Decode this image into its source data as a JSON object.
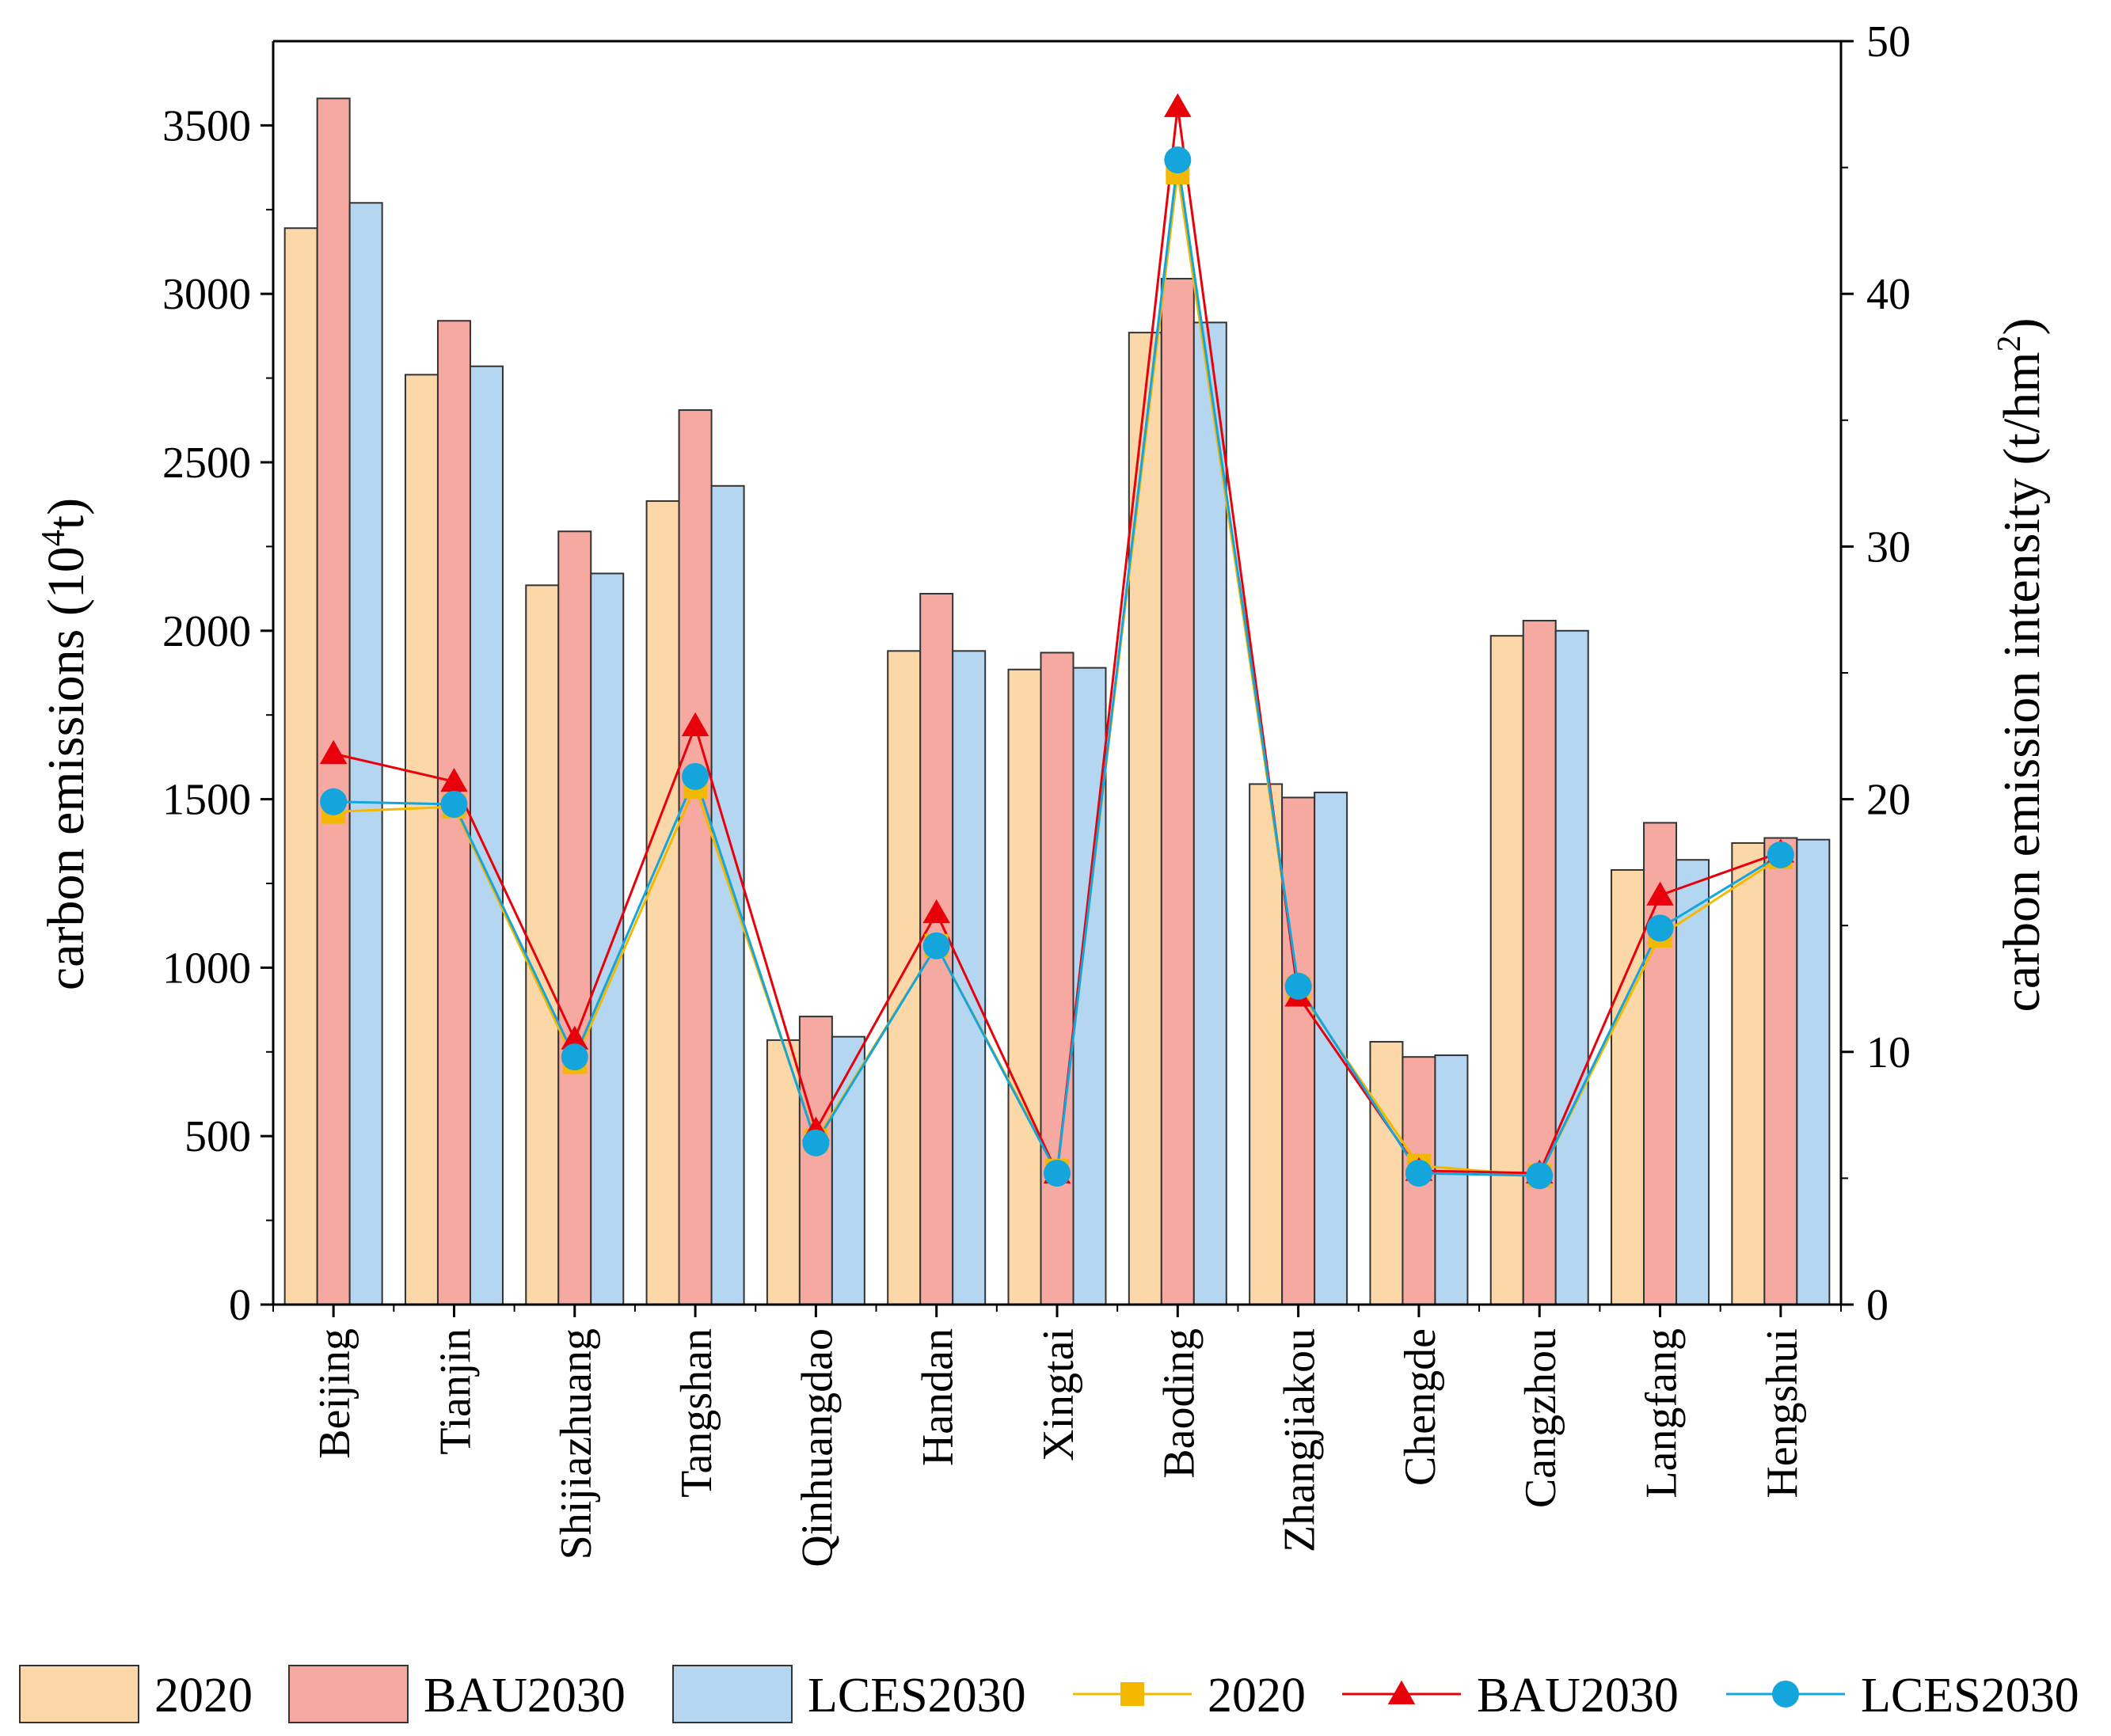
{
  "chart_data": {
    "type": "bar+line",
    "categories": [
      "Beijing",
      "Tianjin",
      "Shijiazhuang",
      "Tangshan",
      "Qinhuangdao",
      "Handan",
      "Xingtai",
      "Baoding",
      "Zhangjiakou",
      "Chengde",
      "Cangzhou",
      "Langfang",
      "Hengshui"
    ],
    "bar_series": [
      {
        "name": "2020",
        "color": "#FCD7A8",
        "values": [
          3195,
          2760,
          2135,
          2385,
          785,
          1940,
          1885,
          2885,
          1545,
          780,
          1985,
          1290,
          1370
        ]
      },
      {
        "name": "BAU2030",
        "color": "#F5A9A0",
        "values": [
          3580,
          2920,
          2295,
          2655,
          855,
          2110,
          1935,
          3045,
          1505,
          735,
          2030,
          1430,
          1385
        ]
      },
      {
        "name": "LCES2030",
        "color": "#B5D6F0",
        "values": [
          3270,
          2785,
          2170,
          2430,
          795,
          1940,
          1890,
          2915,
          1520,
          740,
          2000,
          1320,
          1380
        ]
      }
    ],
    "line_series": [
      {
        "name": "2020",
        "color": "#F5B800",
        "marker": "square",
        "values": [
          19.5,
          19.7,
          9.6,
          20.5,
          6.5,
          14.2,
          5.3,
          44.8,
          12.5,
          5.5,
          5.1,
          14.6,
          17.7
        ]
      },
      {
        "name": "BAU2030",
        "color": "#E8000B",
        "marker": "triangle",
        "values": [
          21.8,
          20.7,
          10.5,
          22.9,
          6.9,
          15.5,
          5.2,
          47.4,
          12.2,
          5.3,
          5.2,
          16.2,
          17.9
        ]
      },
      {
        "name": "LCES2030",
        "color": "#14A5DC",
        "marker": "circle",
        "values": [
          19.9,
          19.8,
          9.8,
          20.9,
          6.4,
          14.2,
          5.2,
          45.3,
          12.6,
          5.2,
          5.1,
          14.9,
          17.8
        ]
      }
    ],
    "left_axis": {
      "label_prefix": "carbon emissions (10",
      "label_sup": "4",
      "label_suffix": "t)",
      "ylim": [
        0,
        3750
      ],
      "ticks": [
        0,
        500,
        1000,
        1500,
        2000,
        2500,
        3000,
        3500
      ]
    },
    "right_axis": {
      "label_prefix": "carbon emission intensity (t/hm",
      "label_sup": "2",
      "label_suffix": ")",
      "ylim": [
        0,
        50
      ],
      "ticks": [
        0,
        10,
        20,
        30,
        40,
        50
      ]
    },
    "legend": {
      "placement": "bottom",
      "items": [
        {
          "label": "2020",
          "kind": "bar",
          "color": "#FCD7A8"
        },
        {
          "label": "BAU2030",
          "kind": "bar",
          "color": "#F5A9A0"
        },
        {
          "label": "LCES2030",
          "kind": "bar",
          "color": "#B5D6F0"
        },
        {
          "label": "2020",
          "kind": "line",
          "color": "#F5B800",
          "marker": "square"
        },
        {
          "label": "BAU2030",
          "kind": "line",
          "color": "#E8000B",
          "marker": "triangle"
        },
        {
          "label": "LCES2030",
          "kind": "line",
          "color": "#14A5DC",
          "marker": "circle"
        }
      ]
    }
  }
}
